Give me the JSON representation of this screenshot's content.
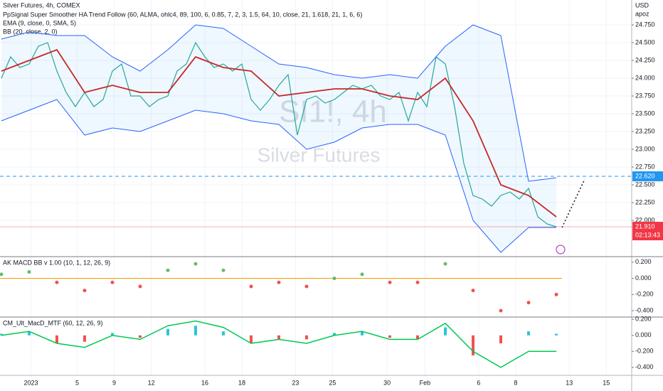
{
  "chart_data": [
    {
      "type": "line",
      "title": "Silver Futures, 4h, COMEX",
      "legend": [
        "PpSignal Super Smoother HA Trend Follow (60, ALMA, ohlc4, 89, 100, 6, 0.85, 7, 2, 3, 1.5, 64, 10, close, 21, 1.618, 21, 1, 6, 6)",
        "EMA (9, close, 0, SMA, 5)",
        "BB (20, close, 2, 0)"
      ],
      "watermark": [
        "SI1!, 4h",
        "Silver Futures"
      ],
      "currency": "USD",
      "unit": "apoz",
      "xlim": [
        -0.15,
        68.15
      ],
      "ylim": [
        21.5,
        25.1
      ],
      "grid": true,
      "xticks": [
        {
          "value": 3.2,
          "label": "2023"
        },
        {
          "value": 8.2,
          "label": "5"
        },
        {
          "value": 12.2,
          "label": "9"
        },
        {
          "value": 16.2,
          "label": "12"
        },
        {
          "value": 22.0,
          "label": "16"
        },
        {
          "value": 26.0,
          "label": "18"
        },
        {
          "value": 31.8,
          "label": "23"
        },
        {
          "value": 35.8,
          "label": "25"
        },
        {
          "value": 41.7,
          "label": "30"
        },
        {
          "value": 45.8,
          "label": "Feb"
        },
        {
          "value": 51.6,
          "label": "6"
        },
        {
          "value": 55.6,
          "label": "8"
        },
        {
          "value": 61.4,
          "label": "13"
        },
        {
          "value": 65.4,
          "label": "15"
        }
      ],
      "yticks": [
        {
          "value": 22.0,
          "label": "22.000"
        },
        {
          "value": 22.25,
          "label": "22.250"
        },
        {
          "value": 22.5,
          "label": "22.500"
        },
        {
          "value": 22.75,
          "label": "22.750"
        },
        {
          "value": 23.0,
          "label": "23.000"
        },
        {
          "value": 23.25,
          "label": "23.250"
        },
        {
          "value": 23.5,
          "label": "23.500"
        },
        {
          "value": 23.75,
          "label": "23.750"
        },
        {
          "value": 24.0,
          "label": "24.000"
        },
        {
          "value": 24.25,
          "label": "24.250"
        },
        {
          "value": 24.5,
          "label": "24.500"
        },
        {
          "value": 24.75,
          "label": "24.750"
        }
      ],
      "hline": {
        "value": 22.62,
        "label": "22.620",
        "color": "#2196f3"
      },
      "last_price": {
        "value": 21.91,
        "label": "21.910",
        "countdown": "02:13:43",
        "color": "#f23645"
      },
      "series": [
        {
          "color": "#26a69a",
          "x": [
            0,
            1,
            2,
            3,
            4,
            5,
            6,
            7,
            8,
            9,
            10,
            11,
            12,
            13,
            14,
            15,
            16,
            17,
            18,
            19,
            20,
            21,
            22,
            23,
            24,
            25,
            26,
            27,
            28,
            29,
            30,
            31,
            32,
            33,
            34,
            35,
            36,
            37,
            38,
            39,
            40,
            41,
            42,
            43,
            44,
            45,
            46,
            47,
            48,
            49,
            50,
            51,
            52,
            53,
            54,
            55,
            56,
            57,
            58,
            59,
            60
          ],
          "values": [
            24.0,
            24.3,
            24.15,
            24.2,
            24.45,
            24.5,
            24.1,
            23.8,
            23.6,
            23.8,
            23.6,
            23.7,
            24.1,
            24.2,
            23.75,
            23.75,
            23.6,
            23.7,
            23.75,
            24.1,
            24.2,
            24.5,
            24.3,
            24.15,
            24.2,
            24.1,
            24.2,
            23.7,
            23.55,
            23.7,
            23.9,
            24.05,
            23.2,
            23.7,
            23.75,
            23.65,
            23.7,
            23.8,
            23.9,
            23.85,
            23.9,
            23.75,
            23.7,
            23.8,
            23.4,
            23.8,
            23.6,
            24.3,
            24.2,
            23.6,
            22.8,
            22.35,
            22.3,
            22.2,
            22.35,
            22.4,
            22.3,
            22.45,
            22.05,
            21.95,
            21.91
          ]
        },
        {
          "color": "#2962ff",
          "x": [
            0,
            3,
            6,
            9,
            12,
            15,
            18,
            21,
            24,
            27,
            30,
            33,
            36,
            39,
            42,
            45,
            48,
            51,
            54,
            57,
            60
          ],
          "values": [
            24.55,
            24.65,
            24.6,
            24.6,
            24.3,
            24.1,
            24.4,
            24.75,
            24.7,
            24.45,
            24.2,
            24.15,
            24.05,
            24.0,
            24.05,
            24.0,
            24.45,
            24.75,
            24.6,
            22.55,
            22.6
          ]
        },
        {
          "color": "#2962ff",
          "x": [
            0,
            3,
            6,
            9,
            12,
            15,
            18,
            21,
            24,
            27,
            30,
            33,
            36,
            39,
            42,
            45,
            48,
            51,
            54,
            57,
            60
          ],
          "values": [
            23.4,
            23.55,
            23.7,
            23.2,
            23.3,
            23.25,
            23.4,
            23.55,
            23.5,
            23.4,
            23.35,
            23.0,
            23.1,
            23.3,
            23.35,
            23.35,
            23.2,
            22.0,
            21.55,
            21.9,
            21.9
          ]
        },
        {
          "color": "#c62828",
          "x": [
            0,
            3,
            6,
            9,
            12,
            15,
            18,
            21,
            24,
            27,
            30,
            33,
            36,
            39,
            42,
            45,
            48,
            51,
            54,
            57,
            60
          ],
          "values": [
            24.1,
            24.25,
            24.4,
            23.8,
            23.9,
            23.8,
            23.8,
            24.3,
            24.15,
            24.1,
            23.75,
            23.8,
            23.85,
            23.85,
            23.75,
            23.7,
            24.0,
            23.4,
            22.5,
            22.35,
            22.05
          ]
        }
      ]
    },
    {
      "type": "scatter",
      "title": "AK MACD BB v 1.00 (10, 1, 12, 26, 9)",
      "ylim": [
        -0.47,
        0.26
      ],
      "zero_line_color": "#ff9800",
      "yticks": [
        {
          "value": 0.2,
          "label": "0.200"
        },
        {
          "value": 0.0,
          "label": "0.000"
        },
        {
          "value": -0.2,
          "label": "-0.200"
        },
        {
          "value": -0.4,
          "label": "-0.400"
        }
      ],
      "series": [
        {
          "color": "#ef5350",
          "x": [
            0,
            3,
            6,
            9,
            12,
            15,
            18,
            21,
            24,
            27,
            30,
            33,
            36,
            39,
            42,
            45,
            48,
            51,
            54,
            57,
            60
          ],
          "values": [
            0.05,
            0.08,
            -0.05,
            -0.15,
            -0.05,
            -0.1,
            0.1,
            0.18,
            0.1,
            -0.1,
            -0.05,
            -0.1,
            0.0,
            0.05,
            -0.05,
            -0.05,
            0.18,
            -0.15,
            -0.4,
            -0.3,
            -0.2
          ]
        }
      ]
    },
    {
      "type": "bar",
      "title": "CM_Ult_MacD_MTF (60, 12, 26, 9)",
      "ylim": [
        -0.5,
        0.22
      ],
      "color_up": "#26c6da",
      "color_down": "#ef5350",
      "yticks": [
        {
          "value": 0.2,
          "label": "0.200"
        },
        {
          "value": 0.0,
          "label": "0.000"
        },
        {
          "value": -0.2,
          "label": "-0.200"
        },
        {
          "value": -0.4,
          "label": "-0.400"
        }
      ],
      "x": [
        0,
        3,
        6,
        9,
        12,
        15,
        18,
        21,
        24,
        27,
        30,
        33,
        36,
        39,
        42,
        45,
        48,
        51,
        54,
        57,
        60
      ],
      "values": [
        0.02,
        0.05,
        -0.1,
        -0.08,
        0.03,
        -0.03,
        0.08,
        0.12,
        0.05,
        -0.1,
        -0.05,
        -0.05,
        0.03,
        0.05,
        -0.03,
        -0.05,
        0.1,
        -0.25,
        -0.1,
        0.05,
        0.02
      ],
      "series": [
        {
          "color": "#00c853",
          "values": [
            0.0,
            0.05,
            -0.1,
            -0.15,
            0.0,
            -0.05,
            0.12,
            0.18,
            0.1,
            -0.1,
            -0.05,
            -0.1,
            0.0,
            0.05,
            -0.05,
            -0.05,
            0.15,
            -0.2,
            -0.4,
            -0.2,
            -0.2
          ]
        }
      ]
    }
  ]
}
